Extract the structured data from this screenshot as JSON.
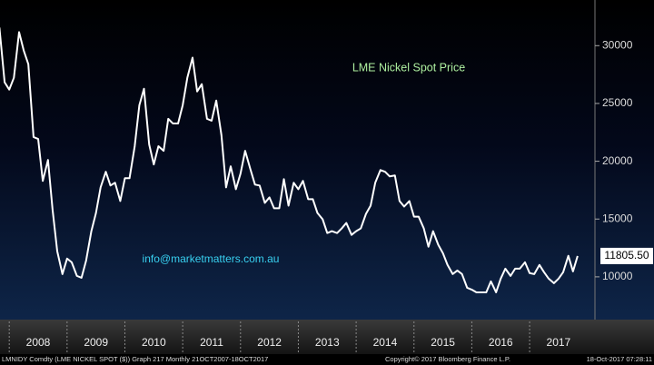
{
  "chart_data": {
    "type": "line",
    "annotations": [
      "LME Nickel Spot Price",
      "info@marketmatters.com.au"
    ],
    "footer": {
      "ticker": "LMNIDY Comdty (LME NICKEL  SPOT ($)) Graph 217  Monthly 21OCT2007-18OCT2017",
      "copyright": "Copyright© 2017 Bloomberg Finance L.P.",
      "timestamp": "18-Oct-2017 07:28:11"
    },
    "x": [
      2007.83,
      2007.92,
      2008.0,
      2008.08,
      2008.17,
      2008.25,
      2008.33,
      2008.42,
      2008.5,
      2008.58,
      2008.67,
      2008.75,
      2008.83,
      2008.92,
      2009.0,
      2009.08,
      2009.17,
      2009.25,
      2009.33,
      2009.42,
      2009.5,
      2009.58,
      2009.67,
      2009.75,
      2009.83,
      2009.92,
      2010.0,
      2010.08,
      2010.17,
      2010.25,
      2010.33,
      2010.42,
      2010.5,
      2010.58,
      2010.67,
      2010.75,
      2010.83,
      2010.92,
      2011.0,
      2011.08,
      2011.17,
      2011.25,
      2011.33,
      2011.42,
      2011.5,
      2011.58,
      2011.67,
      2011.75,
      2011.83,
      2011.92,
      2012.0,
      2012.08,
      2012.17,
      2012.25,
      2012.33,
      2012.42,
      2012.5,
      2012.58,
      2012.67,
      2012.75,
      2012.83,
      2012.92,
      2013.0,
      2013.08,
      2013.17,
      2013.25,
      2013.33,
      2013.42,
      2013.5,
      2013.58,
      2013.67,
      2013.75,
      2013.83,
      2013.92,
      2014.0,
      2014.08,
      2014.17,
      2014.25,
      2014.33,
      2014.42,
      2014.5,
      2014.58,
      2014.67,
      2014.75,
      2014.83,
      2014.92,
      2015.0,
      2015.08,
      2015.17,
      2015.25,
      2015.33,
      2015.42,
      2015.5,
      2015.58,
      2015.67,
      2015.75,
      2015.83,
      2015.92,
      2016.0,
      2016.08,
      2016.17,
      2016.25,
      2016.33,
      2016.42,
      2016.5,
      2016.58,
      2016.67,
      2016.75,
      2016.83,
      2016.92,
      2017.0,
      2017.08,
      2017.17,
      2017.25,
      2017.33,
      2017.42,
      2017.5,
      2017.58,
      2017.67,
      2017.75,
      2017.83
    ],
    "series": [
      {
        "color": "#ffffff",
        "values": [
          31570,
          26830,
          26200,
          27220,
          31170,
          29590,
          28400,
          22090,
          21930,
          18300,
          20110,
          15770,
          12210,
          10240,
          11580,
          11260,
          10080,
          9920,
          11420,
          13950,
          15530,
          17740,
          19090,
          17900,
          18140,
          16560,
          18530,
          18530,
          21300,
          24850,
          26270,
          21450,
          19720,
          21300,
          20900,
          23670,
          23270,
          23270,
          24850,
          27220,
          28960,
          26040,
          26670,
          23670,
          23510,
          25250,
          22250,
          17740,
          19560,
          17580,
          18930,
          20900,
          19320,
          17980,
          17900,
          16400,
          16870,
          15930,
          15930,
          18450,
          16160,
          18140,
          17580,
          18300,
          16720,
          16720,
          15530,
          14980,
          13790,
          13950,
          13790,
          14190,
          14660,
          13630,
          13950,
          14190,
          15450,
          16160,
          18140,
          19240,
          19090,
          18690,
          18770,
          16560,
          16080,
          16560,
          15210,
          15210,
          14190,
          12610,
          13950,
          12770,
          12050,
          11030,
          10240,
          10550,
          10240,
          9050,
          8890,
          8660,
          8660,
          8660,
          9610,
          8660,
          9840,
          10710,
          10080,
          10710,
          10710,
          11260,
          10320,
          10240,
          11030,
          10400,
          9840,
          9450,
          9840,
          10400,
          11820,
          10470,
          11805.5
        ],
        "value_labels": [
          null,
          null,
          null,
          null,
          null,
          null,
          null,
          null,
          null,
          null,
          null,
          null,
          null,
          null,
          null,
          null,
          null,
          null,
          null,
          null,
          null,
          null,
          null,
          null,
          null,
          null,
          null,
          null,
          null,
          null,
          null,
          null,
          null,
          null,
          null,
          null,
          null,
          null,
          null,
          null,
          null,
          null,
          null,
          null,
          null,
          null,
          null,
          null,
          null,
          null,
          null,
          null,
          null,
          null,
          null,
          null,
          null,
          null,
          null,
          null,
          null,
          null,
          null,
          null,
          null,
          null,
          null,
          null,
          null,
          null,
          null,
          null,
          null,
          null,
          null,
          null,
          null,
          null,
          null,
          null,
          null,
          null,
          null,
          null,
          null,
          null,
          null,
          null,
          null,
          null,
          null,
          null,
          null,
          null,
          null,
          null,
          null,
          null,
          null,
          null,
          null,
          null,
          null,
          null,
          null,
          null,
          null,
          null,
          null,
          null,
          null,
          null,
          null,
          null,
          null,
          null,
          null,
          null,
          null,
          null,
          "11805.50"
        ]
      }
    ],
    "xlim": [
      2007.84,
      2018.13
    ],
    "xticks": [
      {
        "value": 2008.5,
        "label": "2008"
      },
      {
        "value": 2009.5,
        "label": "2009"
      },
      {
        "value": 2010.5,
        "label": "2010"
      },
      {
        "value": 2011.5,
        "label": "2011"
      },
      {
        "value": 2012.5,
        "label": "2012"
      },
      {
        "value": 2013.5,
        "label": "2013"
      },
      {
        "value": 2014.5,
        "label": "2014"
      },
      {
        "value": 2015.5,
        "label": "2015"
      },
      {
        "value": 2016.5,
        "label": "2016"
      },
      {
        "value": 2017.5,
        "label": "2017"
      }
    ],
    "ylim": [
      6300,
      33950
    ],
    "yticks": [
      10000,
      15000,
      20000,
      25000,
      30000
    ]
  }
}
